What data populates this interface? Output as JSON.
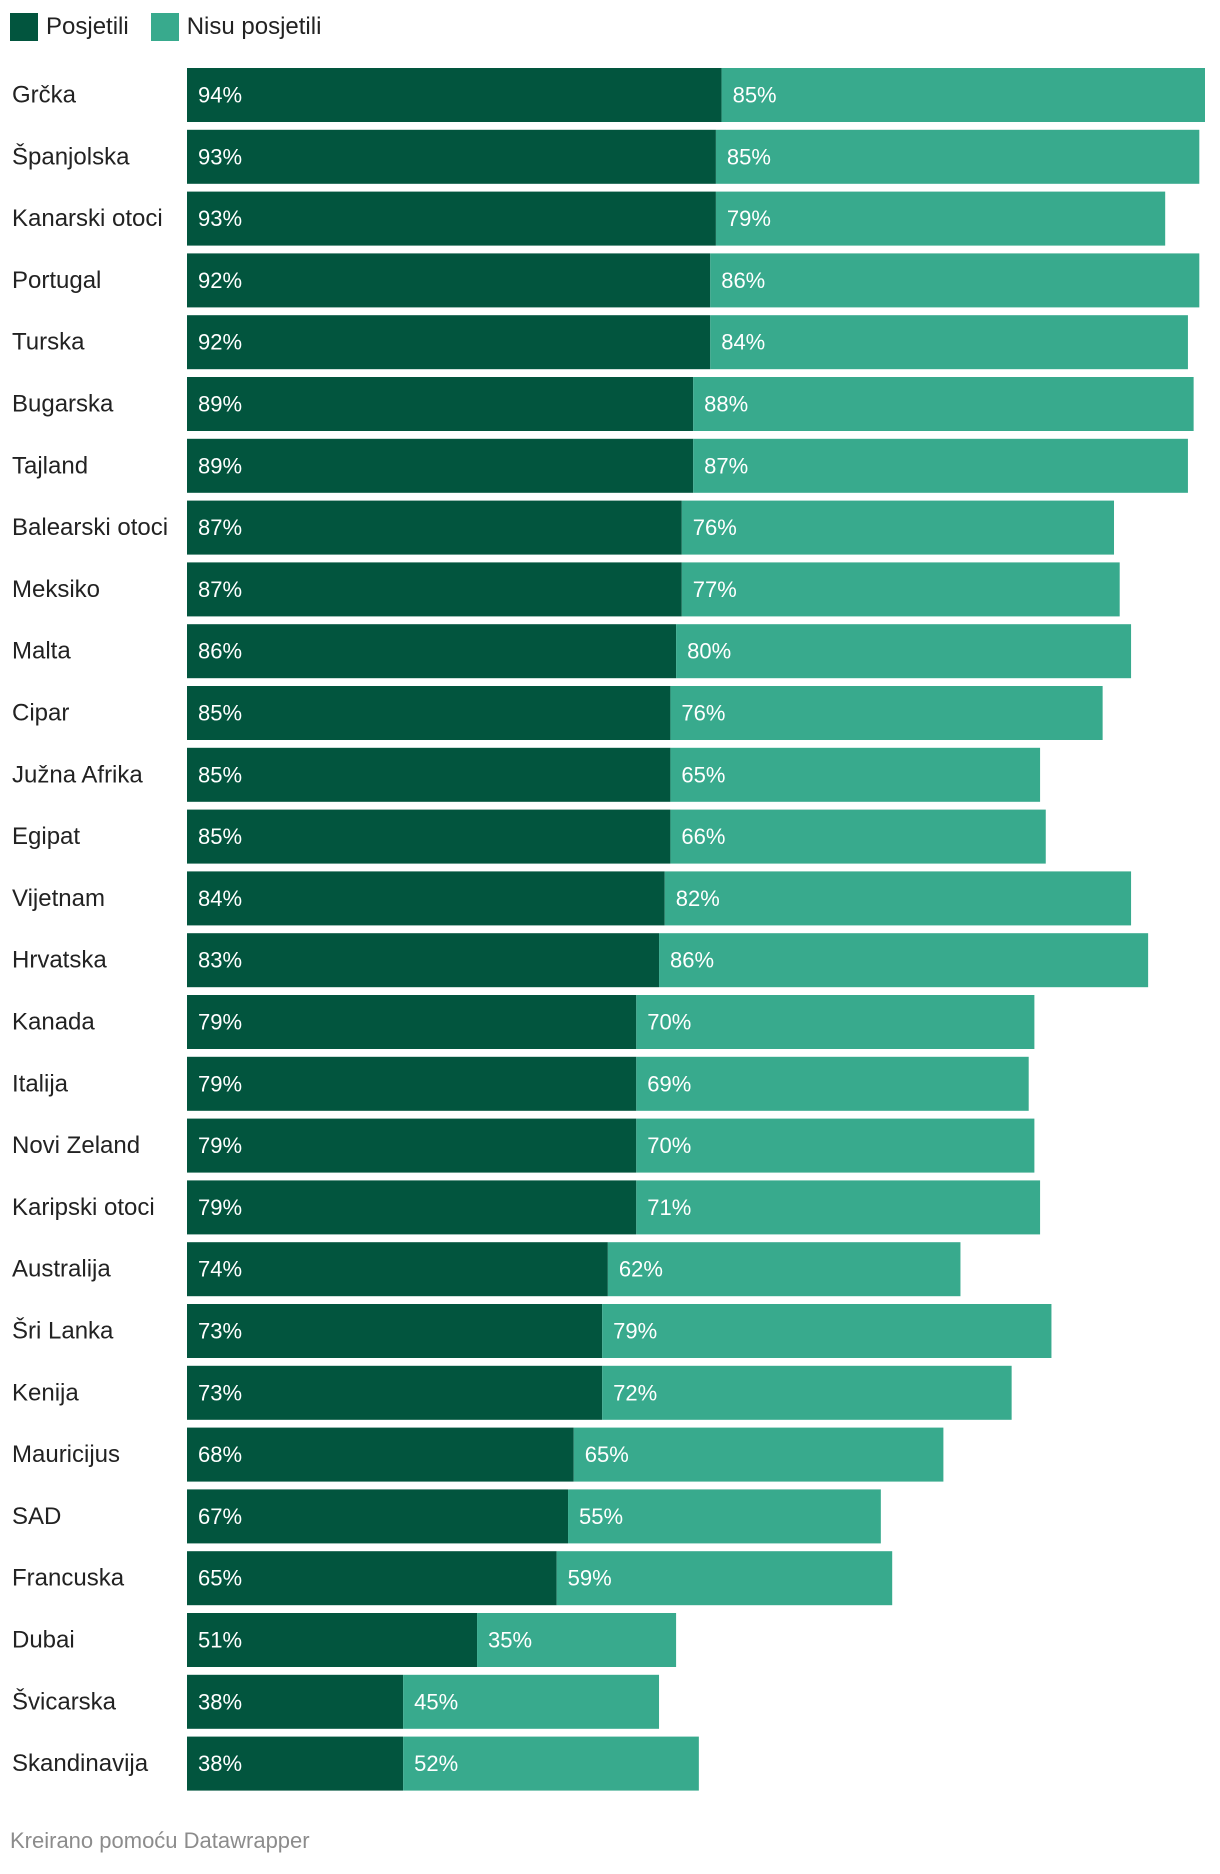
{
  "legend": {
    "visited": {
      "label": "Posjetili",
      "color": "#02553E"
    },
    "not_visited": {
      "label": "Nisu posjetili",
      "color": "#38AA8D"
    }
  },
  "footer": "Kreirano pomoću Datawrapper",
  "chart_data": {
    "type": "bar",
    "orientation": "horizontal",
    "stacked": true,
    "legend_position": "top-left",
    "categories": [
      "Grčka",
      "Španjolska",
      "Kanarski otoci",
      "Portugal",
      "Turska",
      "Bugarska",
      "Tajland",
      "Balearski otoci",
      "Meksiko",
      "Malta",
      "Cipar",
      "Južna Afrika",
      "Egipat",
      "Vijetnam",
      "Hrvatska",
      "Kanada",
      "Italija",
      "Novi Zeland",
      "Karipski otoci",
      "Australija",
      "Šri Lanka",
      "Kenija",
      "Mauricijus",
      "SAD",
      "Francuska",
      "Dubai",
      "Švicarska",
      "Skandinavija"
    ],
    "series": [
      {
        "name": "Posjetili",
        "color": "#02553E",
        "values": [
          94,
          93,
          93,
          92,
          92,
          89,
          89,
          87,
          87,
          86,
          85,
          85,
          85,
          84,
          83,
          79,
          79,
          79,
          79,
          74,
          73,
          73,
          68,
          67,
          65,
          51,
          38,
          38
        ]
      },
      {
        "name": "Nisu posjetili",
        "color": "#38AA8D",
        "values": [
          85,
          85,
          79,
          86,
          84,
          88,
          87,
          76,
          77,
          80,
          76,
          65,
          66,
          82,
          86,
          70,
          69,
          70,
          71,
          62,
          79,
          72,
          65,
          55,
          59,
          35,
          45,
          52
        ]
      }
    ],
    "value_suffix": "%",
    "xlim": [
      0,
      179
    ]
  }
}
